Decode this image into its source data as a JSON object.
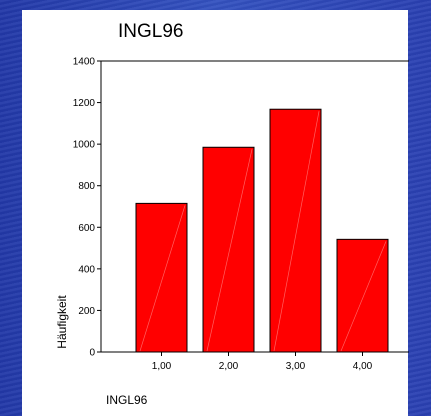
{
  "chart_data": {
    "type": "bar",
    "title": "INGL96",
    "xlabel": "INGL96",
    "ylabel": "Häufigkeit",
    "categories": [
      "1,00",
      "2,00",
      "3,00",
      "4,00"
    ],
    "values": [
      715,
      985,
      1168,
      542
    ],
    "ylim": [
      0,
      1400
    ],
    "yticks": [
      "0",
      "200",
      "400",
      "600",
      "800",
      "1000",
      "1200",
      "1400"
    ],
    "bar_color": "#ff0000",
    "grid": false,
    "legend": "none"
  },
  "colors": {
    "background": "#2f48b6",
    "panel": "#ffffff"
  }
}
